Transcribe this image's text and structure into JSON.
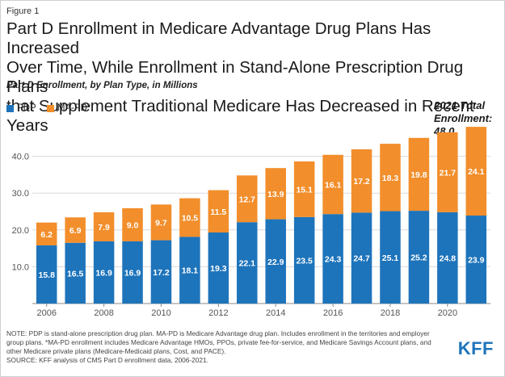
{
  "figure_label": "Figure 1",
  "chart_data": {
    "type": "bar",
    "stacked": true,
    "title": "Part D Enrollment in Medicare Advantage Drug Plans Has Increased\nOver Time, While Enrollment in Stand-Alone Prescription Drug Plans\nthat Supplement Traditional Medicare Has Decreased in Recent Years",
    "subtitle": "Part D Enrollment, by Plan Type, in Millions",
    "categories": [
      "2006",
      "2007",
      "2008",
      "2009",
      "2010",
      "2011",
      "2012",
      "2013",
      "2014",
      "2015",
      "2016",
      "2017",
      "2018",
      "2019",
      "2020",
      "2021"
    ],
    "x_tick_labels": [
      "2006",
      "2008",
      "2010",
      "2012",
      "2014",
      "2016",
      "2018",
      "2020"
    ],
    "series": [
      {
        "name": "PDP",
        "color": "#1e74bb",
        "values": [
          15.8,
          16.5,
          16.9,
          16.9,
          17.2,
          18.1,
          19.3,
          22.1,
          22.9,
          23.5,
          24.3,
          24.7,
          25.1,
          25.2,
          24.8,
          23.9
        ]
      },
      {
        "name": "MA-PD*",
        "color": "#f28e2b",
        "values": [
          6.2,
          6.9,
          7.9,
          9.0,
          9.7,
          10.5,
          11.5,
          12.7,
          13.9,
          15.1,
          16.1,
          17.2,
          18.3,
          19.8,
          21.7,
          24.1
        ]
      }
    ],
    "y_ticks": [
      10.0,
      20.0,
      30.0,
      40.0
    ],
    "y_tick_labels": [
      "10.0",
      "20.0",
      "30.0",
      "40.0"
    ],
    "ylim": [
      0,
      50
    ],
    "xlabel": "",
    "ylabel": "",
    "grid": true,
    "annotation": "2021 Total\nEnrollment: 48.0",
    "legend": [
      {
        "label": "PDP",
        "color": "#1e74bb"
      },
      {
        "label": "MA-PD*",
        "color": "#f28e2b"
      }
    ]
  },
  "note": "NOTE: PDP is stand-alone prescription drug plan. MA-PD is Medicare Advantage drug plan. Includes enrollment in the territories and employer group plans. *MA-PD enrollment includes Medicare Advantage HMOs, PPOs, private fee-for-service, and Medicare Savings Account plans, and other Medicare private plans (Medicare-Medicaid plans, Cost, and PACE).",
  "source": "SOURCE: KFF analysis of CMS Part D enrollment data, 2006-2021.",
  "logo_text": "KFF"
}
